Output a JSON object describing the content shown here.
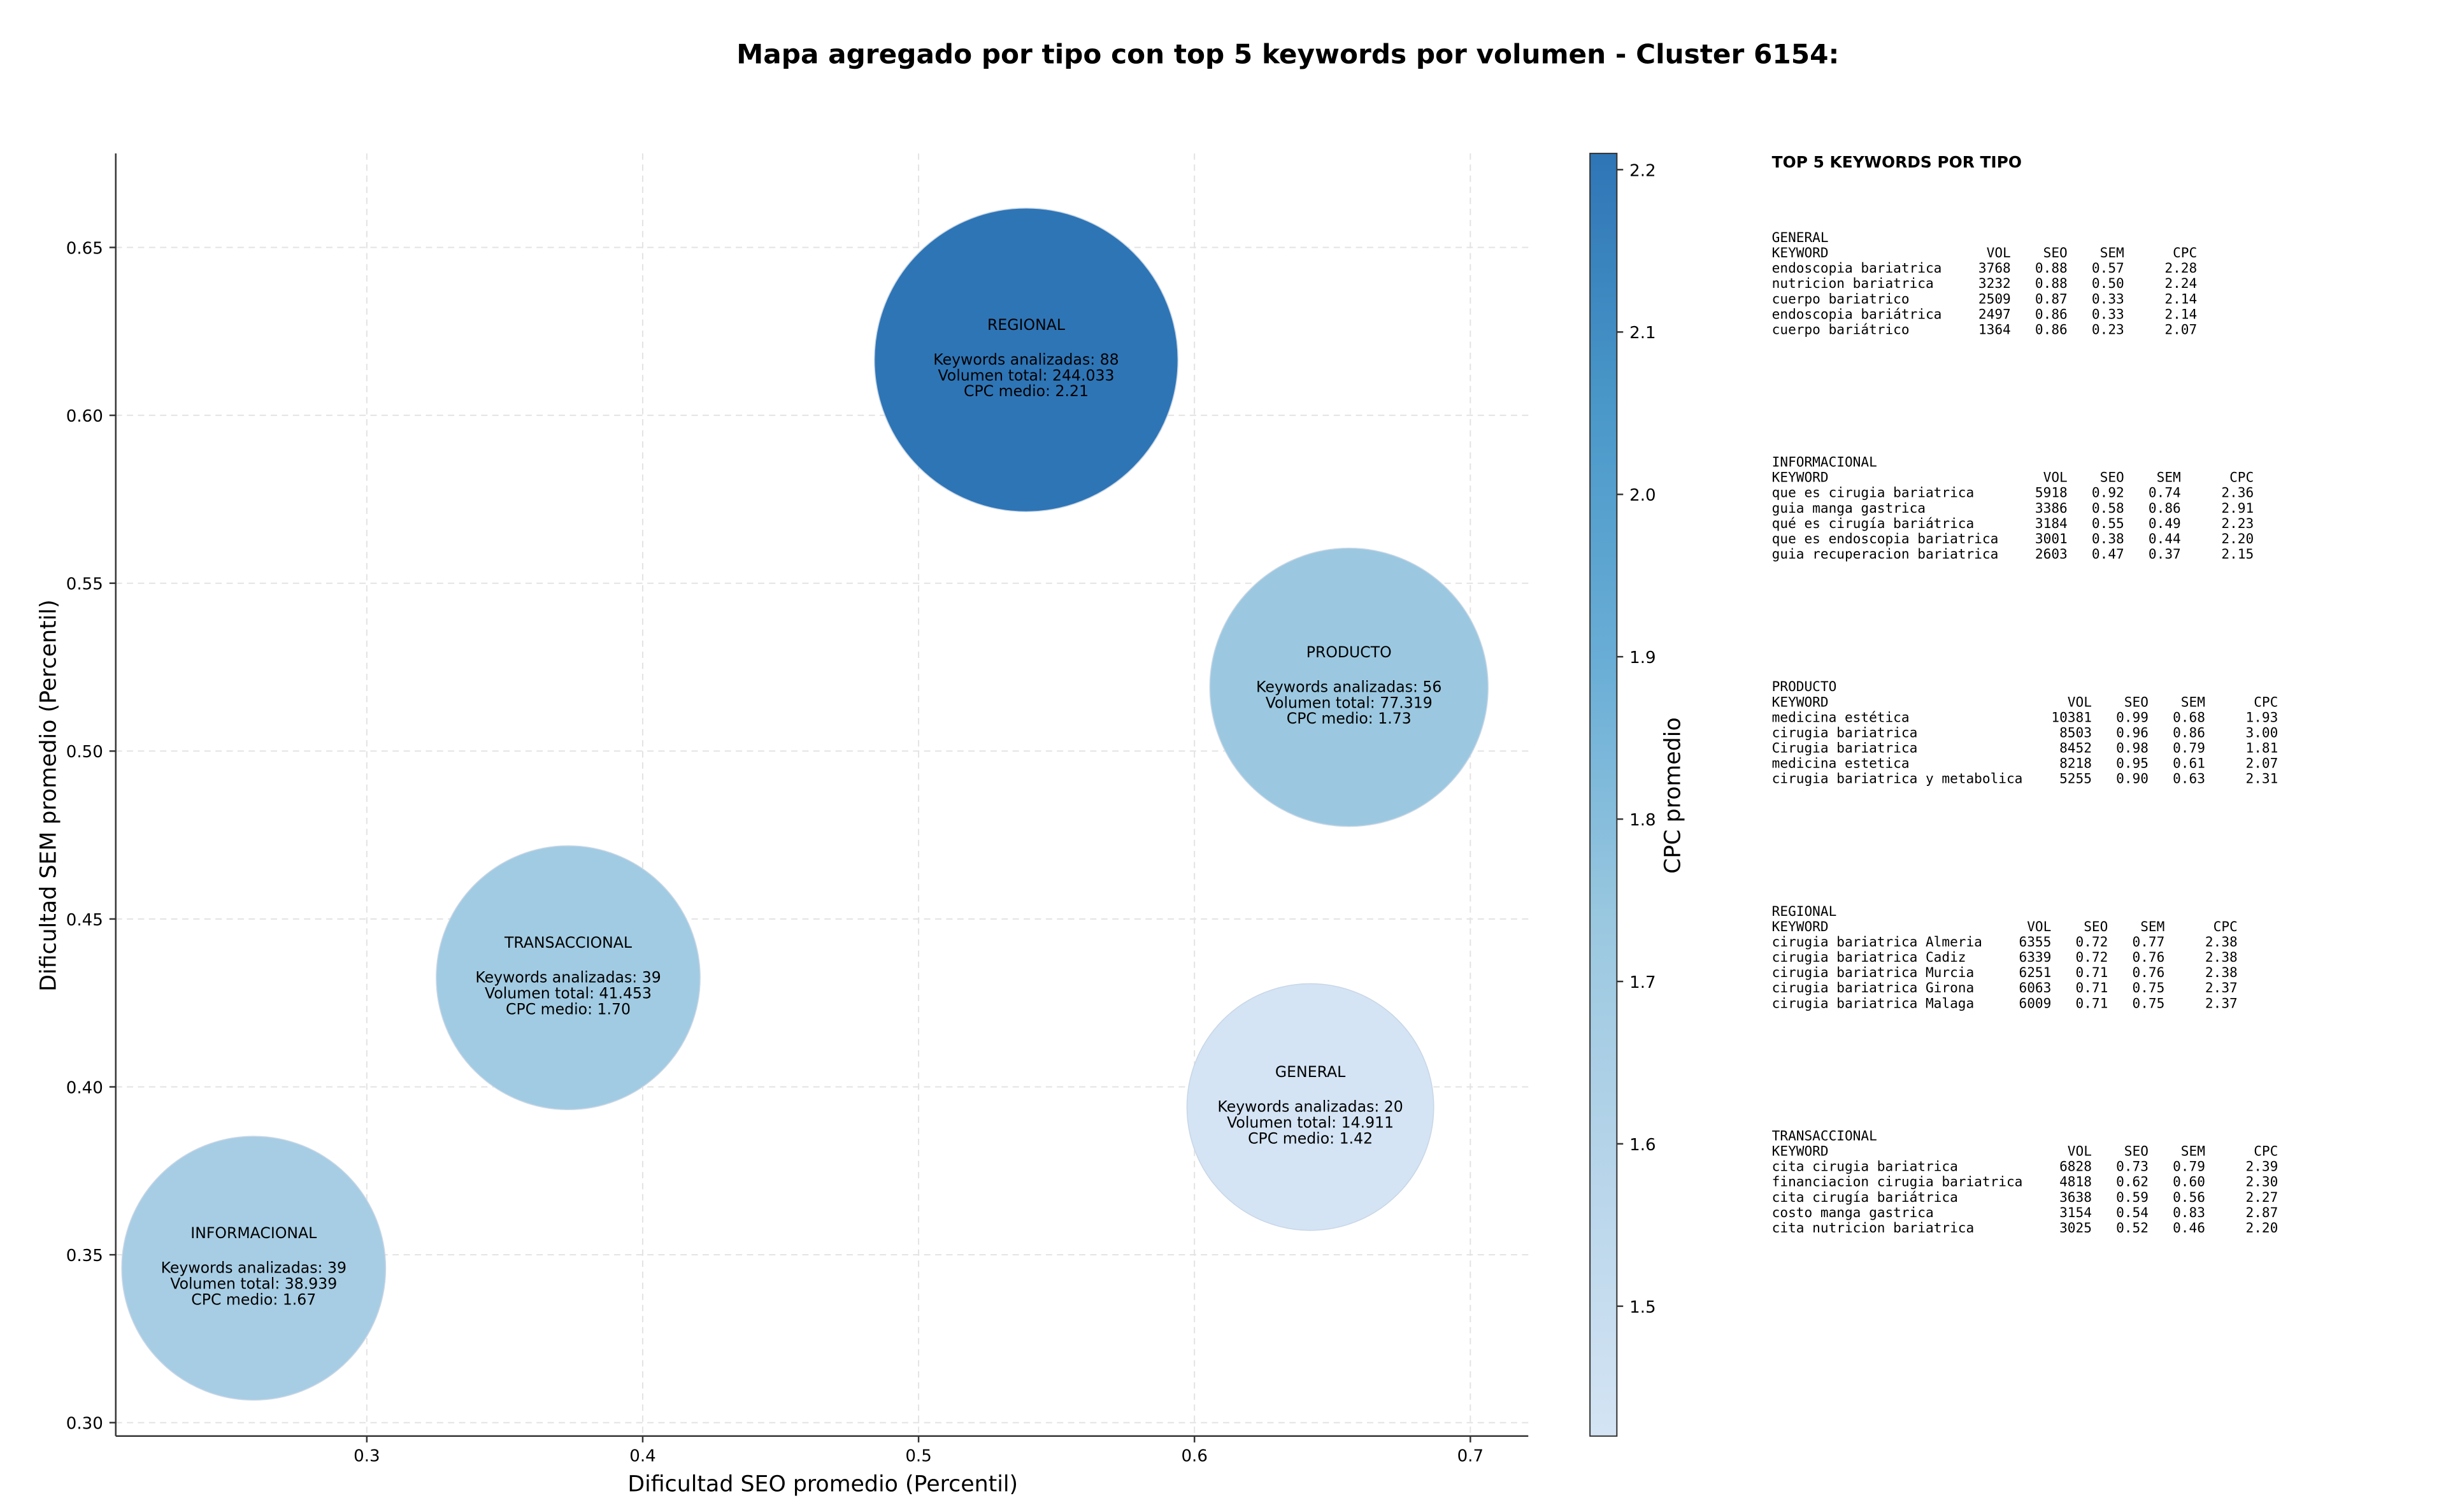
{
  "chart_data": {
    "type": "bubble",
    "title": "Mapa agregado por tipo con top 5 keywords por volumen - Cluster 6154:",
    "xlabel": "Dificultad SEO promedio (Percentil)",
    "ylabel": "Dificultad SEM promedio (Percentil)",
    "xlim": [
      0.209,
      0.721
    ],
    "ylim": [
      0.296,
      0.678
    ],
    "xticks": [
      0.3,
      0.4,
      0.5,
      0.6,
      0.7
    ],
    "yticks": [
      {
        "value": 0.3,
        "label": "0.30"
      },
      0.35,
      {
        "value": 0.4,
        "label": "0.40"
      },
      0.45,
      {
        "value": 0.5,
        "label": "0.50"
      },
      0.55,
      {
        "value": 0.6,
        "label": "0.60"
      },
      0.65
    ],
    "grid": true,
    "colorbar": {
      "label": "CPC promedio",
      "clim": [
        1.42,
        2.21
      ],
      "ticks": [
        1.5,
        1.6,
        1.7,
        1.8,
        1.9,
        {
          "value": 2,
          "label": "2.0"
        },
        2.1,
        2.2
      ],
      "colormap": [
        "#d4e4f4",
        "#b8d5ea",
        "#9ac8e0",
        "#6aaed6",
        "#4a98c9",
        "#2e75b6"
      ]
    },
    "points": [
      {
        "name": "REGIONAL",
        "x": 0.539,
        "y": 0.6165,
        "keywords": 88,
        "volume": 244033,
        "cpc": 2.21,
        "keywords_label": "Keywords analizadas: 88",
        "volume_label": "Volumen total: 244.033",
        "cpc_label": "CPC medio: 2.21"
      },
      {
        "name": "PRODUCTO",
        "x": 0.656,
        "y": 0.519,
        "keywords": 56,
        "volume": 77319,
        "cpc": 1.73,
        "keywords_label": "Keywords analizadas: 56",
        "volume_label": "Volumen total: 77.319",
        "cpc_label": "CPC medio: 1.73"
      },
      {
        "name": "TRANSACCIONAL",
        "x": 0.373,
        "y": 0.4325,
        "keywords": 39,
        "volume": 41453,
        "cpc": 1.7,
        "keywords_label": "Keywords analizadas: 39",
        "volume_label": "Volumen total: 41.453",
        "cpc_label": "CPC medio: 1.70"
      },
      {
        "name": "GENERAL",
        "x": 0.642,
        "y": 0.394,
        "keywords": 20,
        "volume": 14911,
        "cpc": 1.42,
        "keywords_label": "Keywords analizadas: 20",
        "volume_label": "Volumen total: 14.911",
        "cpc_label": "CPC medio: 1.42"
      },
      {
        "name": "INFORMACIONAL",
        "x": 0.259,
        "y": 0.346,
        "keywords": 39,
        "volume": 38939,
        "cpc": 1.67,
        "keywords_label": "Keywords analizadas: 39",
        "volume_label": "Volumen total: 38.939",
        "cpc_label": "CPC medio: 1.67"
      }
    ]
  },
  "keyword_tables": {
    "title": "TOP 5 KEYWORDS POR TIPO",
    "groups": [
      {
        "name": "GENERAL",
        "columns": [
          "KEYWORD",
          "VOL",
          "SEO",
          "SEM",
          "CPC"
        ],
        "rows": [
          [
            "endoscopia bariatrica",
            "3768",
            "0.88",
            "0.57",
            "2.28"
          ],
          [
            "nutricion bariatrica",
            "3232",
            "0.88",
            "0.50",
            "2.24"
          ],
          [
            "cuerpo bariatrico",
            "2509",
            "0.87",
            "0.33",
            "2.14"
          ],
          [
            "endoscopia bariátrica",
            "2497",
            "0.86",
            "0.33",
            "2.14"
          ],
          [
            "cuerpo bariátrico",
            "1364",
            "0.86",
            "0.23",
            "2.07"
          ]
        ]
      },
      {
        "name": "INFORMACIONAL",
        "columns": [
          "KEYWORD",
          "VOL",
          "SEO",
          "SEM",
          "CPC"
        ],
        "rows": [
          [
            "que es cirugia bariatrica",
            "5918",
            "0.92",
            "0.74",
            "2.36"
          ],
          [
            "guia manga gastrica",
            "3386",
            "0.58",
            "0.86",
            "2.91"
          ],
          [
            "qué es cirugía bariátrica",
            "3184",
            "0.55",
            "0.49",
            "2.23"
          ],
          [
            "que es endoscopia bariatrica",
            "3001",
            "0.38",
            "0.44",
            "2.20"
          ],
          [
            "guia recuperacion bariatrica",
            "2603",
            "0.47",
            "0.37",
            "2.15"
          ]
        ]
      },
      {
        "name": "PRODUCTO",
        "columns": [
          "KEYWORD",
          "VOL",
          "SEO",
          "SEM",
          "CPC"
        ],
        "rows": [
          [
            "medicina estética",
            "10381",
            "0.99",
            "0.68",
            "1.93"
          ],
          [
            "cirugia bariatrica",
            "8503",
            "0.96",
            "0.86",
            "3.00"
          ],
          [
            "Cirugia bariatrica",
            "8452",
            "0.98",
            "0.79",
            "1.81"
          ],
          [
            "medicina estetica",
            "8218",
            "0.95",
            "0.61",
            "2.07"
          ],
          [
            "cirugia bariatrica y metabolica",
            "5255",
            "0.90",
            "0.63",
            "2.31"
          ]
        ]
      },
      {
        "name": "REGIONAL",
        "columns": [
          "KEYWORD",
          "VOL",
          "SEO",
          "SEM",
          "CPC"
        ],
        "rows": [
          [
            "cirugia bariatrica Almeria",
            "6355",
            "0.72",
            "0.77",
            "2.38"
          ],
          [
            "cirugia bariatrica Cadiz",
            "6339",
            "0.72",
            "0.76",
            "2.38"
          ],
          [
            "cirugia bariatrica Murcia",
            "6251",
            "0.71",
            "0.76",
            "2.38"
          ],
          [
            "cirugia bariatrica Girona",
            "6063",
            "0.71",
            "0.75",
            "2.37"
          ],
          [
            "cirugia bariatrica Malaga",
            "6009",
            "0.71",
            "0.75",
            "2.37"
          ]
        ]
      },
      {
        "name": "TRANSACCIONAL",
        "columns": [
          "KEYWORD",
          "VOL",
          "SEO",
          "SEM",
          "CPC"
        ],
        "rows": [
          [
            "cita cirugia bariatrica",
            "6828",
            "0.73",
            "0.79",
            "2.39"
          ],
          [
            "financiacion cirugia bariatrica",
            "4818",
            "0.62",
            "0.60",
            "2.30"
          ],
          [
            "cita cirugía bariátrica",
            "3638",
            "0.59",
            "0.56",
            "2.27"
          ],
          [
            "costo manga gastrica",
            "3154",
            "0.54",
            "0.83",
            "2.87"
          ],
          [
            "cita nutricion bariatrica",
            "3025",
            "0.52",
            "0.46",
            "2.20"
          ]
        ]
      }
    ]
  }
}
